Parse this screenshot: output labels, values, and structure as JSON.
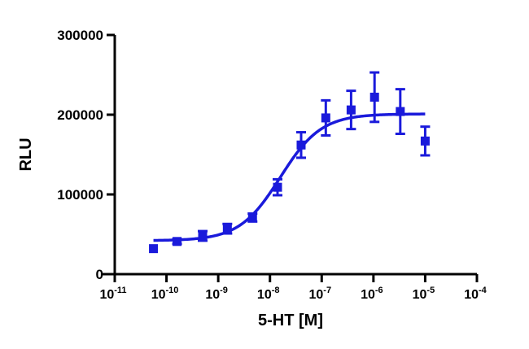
{
  "chart_data": {
    "type": "scatter",
    "title": "",
    "xlabel": "5-HT [M]",
    "ylabel": "RLU",
    "x_scale": "log",
    "xlim": [
      1e-11,
      0.0001
    ],
    "ylim": [
      0,
      300000
    ],
    "x_ticks": [
      {
        "value": 1e-11,
        "base": "10",
        "exp": "-11"
      },
      {
        "value": 1e-10,
        "base": "10",
        "exp": "-10"
      },
      {
        "value": 1e-09,
        "base": "10",
        "exp": "-9"
      },
      {
        "value": 1e-08,
        "base": "10",
        "exp": "-8"
      },
      {
        "value": 1e-07,
        "base": "10",
        "exp": "-7"
      },
      {
        "value": 1e-06,
        "base": "10",
        "exp": "-6"
      },
      {
        "value": 1e-05,
        "base": "10",
        "exp": "-5"
      },
      {
        "value": 0.0001,
        "base": "10",
        "exp": "-4"
      }
    ],
    "y_ticks": [
      {
        "value": 0,
        "label": "0"
      },
      {
        "value": 100000,
        "label": "100000"
      },
      {
        "value": 200000,
        "label": "200000"
      },
      {
        "value": 300000,
        "label": "300000"
      }
    ],
    "grid": false,
    "color": "#1a1adb",
    "points": [
      {
        "x": 5.6e-11,
        "y": 32000,
        "err": 0
      },
      {
        "x": 1.6e-10,
        "y": 41000,
        "err": 3000
      },
      {
        "x": 5e-10,
        "y": 48000,
        "err": 6000
      },
      {
        "x": 1.5e-09,
        "y": 57000,
        "err": 6000
      },
      {
        "x": 4.6e-09,
        "y": 71000,
        "err": 5000
      },
      {
        "x": 1.4e-08,
        "y": 109000,
        "err": 10000
      },
      {
        "x": 4e-08,
        "y": 162000,
        "err": 16000
      },
      {
        "x": 1.2e-07,
        "y": 196000,
        "err": 22000
      },
      {
        "x": 3.7e-07,
        "y": 206000,
        "err": 24000
      },
      {
        "x": 1.05e-06,
        "y": 222000,
        "err": 31000
      },
      {
        "x": 3.3e-06,
        "y": 204000,
        "err": 28000
      },
      {
        "x": 1e-05,
        "y": 167000,
        "err": 18000
      }
    ],
    "fit": {
      "model": "sigmoidal dose-response",
      "bottom": 42000,
      "top": 201000,
      "log_ec50": -7.8,
      "hill": 1.1,
      "x_range": [
        5.6e-11,
        1e-05
      ]
    }
  }
}
